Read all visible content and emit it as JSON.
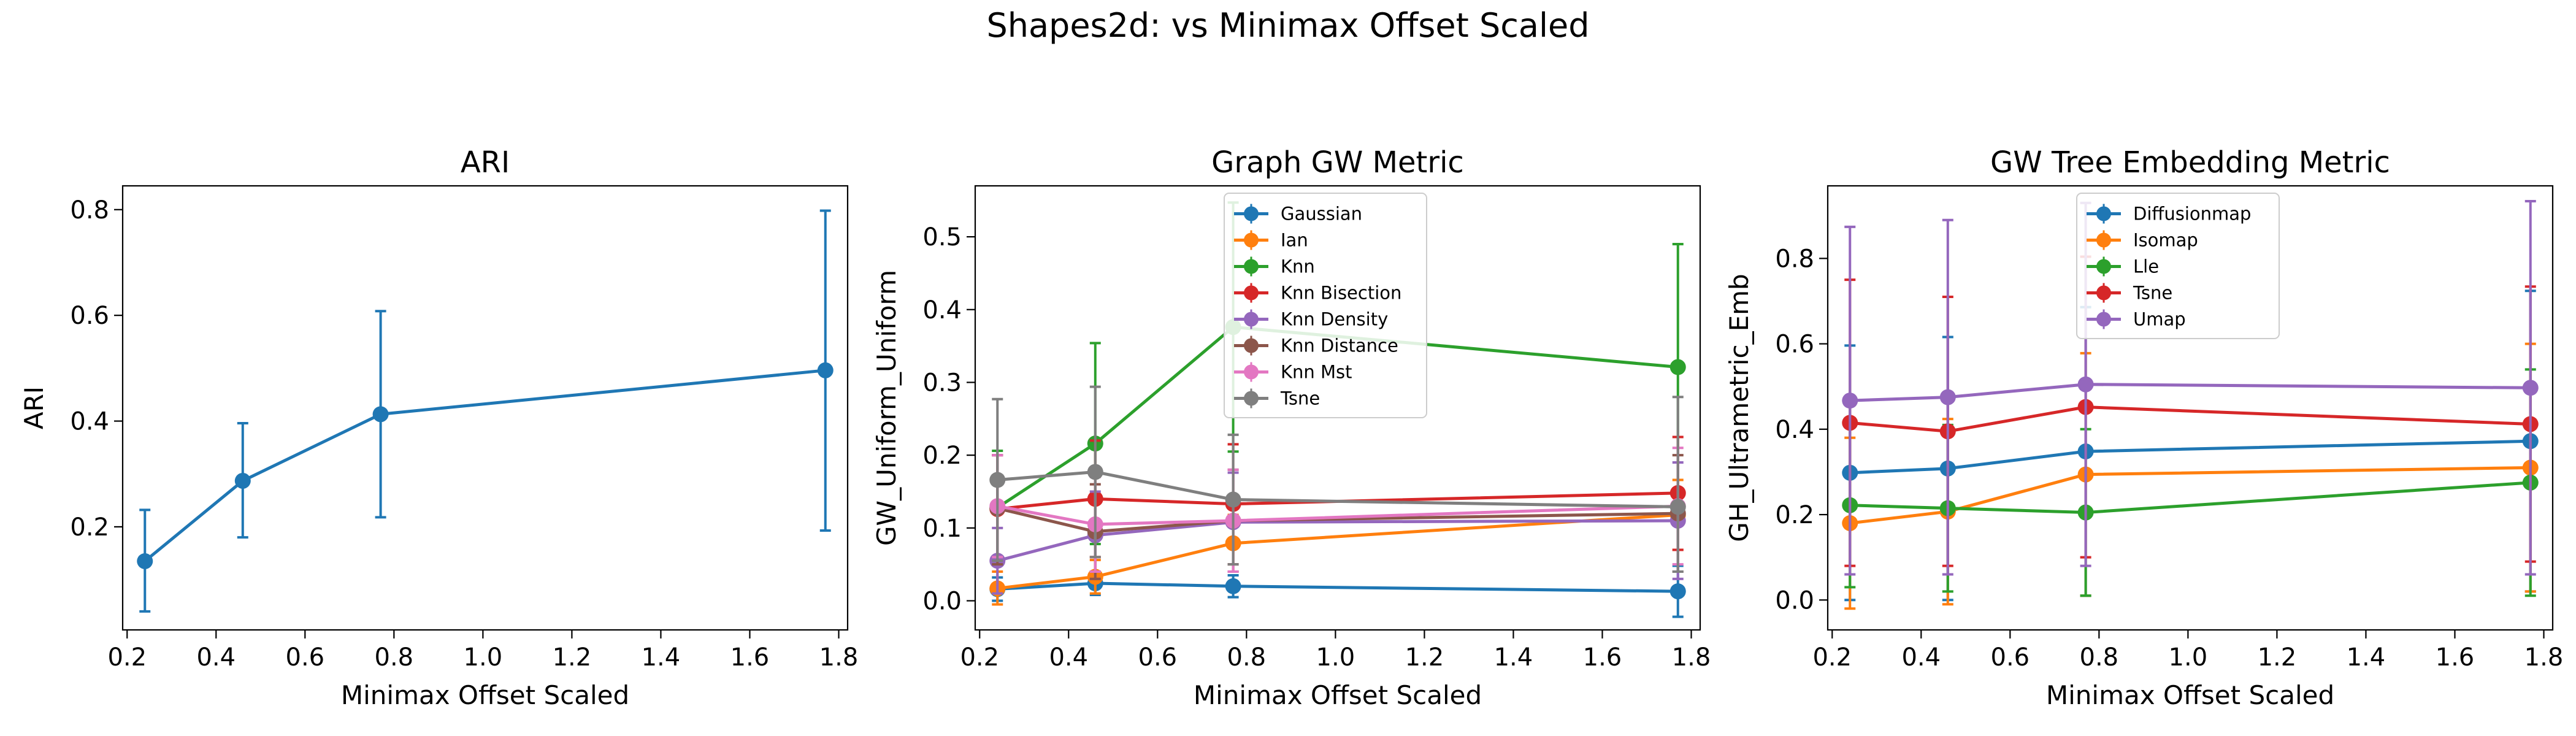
{
  "figure_title": "Shapes2d: vs Minimax Offset Scaled",
  "colors": {
    "blue": "#1f77b4",
    "orange": "#ff7f0e",
    "green": "#2ca02c",
    "red": "#d62728",
    "purple": "#9467bd",
    "brown": "#8c564b",
    "pink": "#e377c2",
    "gray": "#7f7f7f"
  },
  "chart_data": [
    {
      "type": "line",
      "title": "ARI",
      "xlabel": "Minimax Offset Scaled",
      "ylabel": "ARI",
      "xlim": [
        0.19,
        1.82
      ],
      "ylim": [
        0.005,
        0.845
      ],
      "xticks": [
        0.2,
        0.4,
        0.6,
        0.8,
        1.0,
        1.2,
        1.4,
        1.6,
        1.8
      ],
      "xtick_labels": [
        "0.2",
        "0.4",
        "0.6",
        "0.8",
        "1.0",
        "1.2",
        "1.4",
        "1.6",
        "1.8"
      ],
      "yticks": [
        0.2,
        0.4,
        0.6,
        0.8
      ],
      "ytick_labels": [
        "0.2",
        "0.4",
        "0.6",
        "0.8"
      ],
      "legend": null,
      "x": [
        0.24,
        0.46,
        0.77,
        1.77
      ],
      "series": [
        {
          "color": "#1f77b4",
          "values": [
            0.135,
            0.287,
            0.413,
            0.496
          ],
          "err_low": [
            0.04,
            0.18,
            0.218,
            0.193
          ],
          "err_high": [
            0.232,
            0.396,
            0.608,
            0.798
          ]
        }
      ]
    },
    {
      "type": "line",
      "title": "Graph GW Metric",
      "xlabel": "Minimax Offset Scaled",
      "ylabel": "GW_Uniform_Uniform",
      "xlim": [
        0.19,
        1.82
      ],
      "ylim": [
        -0.04,
        0.57
      ],
      "xticks": [
        0.2,
        0.4,
        0.6,
        0.8,
        1.0,
        1.2,
        1.4,
        1.6,
        1.8
      ],
      "xtick_labels": [
        "0.2",
        "0.4",
        "0.6",
        "0.8",
        "1.0",
        "1.2",
        "1.4",
        "1.6",
        "1.8"
      ],
      "yticks": [
        0.0,
        0.1,
        0.2,
        0.3,
        0.4,
        0.5
      ],
      "ytick_labels": [
        "0.0",
        "0.1",
        "0.2",
        "0.3",
        "0.4",
        "0.5"
      ],
      "legend": "upper-center",
      "x": [
        0.24,
        0.46,
        0.77,
        1.77
      ],
      "series": [
        {
          "name": "Gaussian",
          "color": "#1f77b4",
          "values": [
            0.016,
            0.024,
            0.02,
            0.013
          ],
          "err_low": [
            0.0,
            0.008,
            0.005,
            -0.022
          ],
          "err_high": [
            0.032,
            0.04,
            0.035,
            0.048
          ]
        },
        {
          "name": "Ian",
          "color": "#ff7f0e",
          "values": [
            0.017,
            0.033,
            0.079,
            0.118
          ],
          "err_low": [
            -0.005,
            0.01,
            0.04,
            0.07
          ],
          "err_high": [
            0.04,
            0.056,
            0.118,
            0.166
          ]
        },
        {
          "name": "Knn",
          "color": "#2ca02c",
          "values": [
            0.128,
            0.216,
            0.376,
            0.321
          ],
          "err_low": [
            0.05,
            0.078,
            0.205,
            0.152
          ],
          "err_high": [
            0.206,
            0.354,
            0.547,
            0.49
          ]
        },
        {
          "name": "Knn Bisection",
          "color": "#d62728",
          "values": [
            0.126,
            0.14,
            0.133,
            0.148
          ],
          "err_low": [
            0.05,
            0.06,
            0.05,
            0.07
          ],
          "err_high": [
            0.2,
            0.22,
            0.215,
            0.225
          ]
        },
        {
          "name": "Knn Density",
          "color": "#9467bd",
          "values": [
            0.055,
            0.09,
            0.108,
            0.11
          ],
          "err_low": [
            0.01,
            0.03,
            0.04,
            0.03
          ],
          "err_high": [
            0.1,
            0.15,
            0.176,
            0.19
          ]
        },
        {
          "name": "Knn Distance",
          "color": "#8c564b",
          "values": [
            0.127,
            0.095,
            0.11,
            0.12
          ],
          "err_low": [
            0.05,
            0.03,
            0.04,
            0.04
          ],
          "err_high": [
            0.2,
            0.16,
            0.18,
            0.2
          ]
        },
        {
          "name": "Knn Mst",
          "color": "#e377c2",
          "values": [
            0.13,
            0.105,
            0.11,
            0.13
          ],
          "err_low": [
            0.06,
            0.04,
            0.04,
            0.05
          ],
          "err_high": [
            0.2,
            0.17,
            0.18,
            0.21
          ]
        },
        {
          "name": "Tsne",
          "color": "#7f7f7f",
          "values": [
            0.166,
            0.177,
            0.139,
            0.129
          ],
          "err_low": [
            0.055,
            0.06,
            0.05,
            0.04
          ],
          "err_high": [
            0.277,
            0.294,
            0.228,
            0.28
          ]
        }
      ]
    },
    {
      "type": "line",
      "title": "GW Tree Embedding Metric",
      "xlabel": "Minimax Offset Scaled",
      "ylabel": "GH_Ultrametric_Emb",
      "xlim": [
        0.19,
        1.82
      ],
      "ylim": [
        -0.07,
        0.97
      ],
      "xticks": [
        0.2,
        0.4,
        0.6,
        0.8,
        1.0,
        1.2,
        1.4,
        1.6,
        1.8
      ],
      "xtick_labels": [
        "0.2",
        "0.4",
        "0.6",
        "0.8",
        "1.0",
        "1.2",
        "1.4",
        "1.6",
        "1.8"
      ],
      "yticks": [
        0.0,
        0.2,
        0.4,
        0.6,
        0.8
      ],
      "ytick_labels": [
        "0.0",
        "0.2",
        "0.4",
        "0.6",
        "0.8"
      ],
      "legend": "upper-center",
      "x": [
        0.24,
        0.46,
        0.77,
        1.77
      ],
      "series": [
        {
          "name": "Diffusionmap",
          "color": "#1f77b4",
          "values": [
            0.298,
            0.308,
            0.348,
            0.372
          ],
          "err_low": [
            0.0,
            0.0,
            0.01,
            0.02
          ],
          "err_high": [
            0.596,
            0.616,
            0.686,
            0.724
          ]
        },
        {
          "name": "Isomap",
          "color": "#ff7f0e",
          "values": [
            0.18,
            0.207,
            0.294,
            0.31
          ],
          "err_low": [
            -0.02,
            -0.01,
            0.01,
            0.02
          ],
          "err_high": [
            0.38,
            0.424,
            0.578,
            0.6
          ]
        },
        {
          "name": "Lle",
          "color": "#2ca02c",
          "values": [
            0.222,
            0.215,
            0.205,
            0.275
          ],
          "err_low": [
            0.03,
            0.02,
            0.01,
            0.01
          ],
          "err_high": [
            0.414,
            0.41,
            0.4,
            0.54
          ]
        },
        {
          "name": "Tsne",
          "color": "#d62728",
          "values": [
            0.415,
            0.395,
            0.452,
            0.412
          ],
          "err_low": [
            0.08,
            0.08,
            0.1,
            0.09
          ],
          "err_high": [
            0.75,
            0.71,
            0.804,
            0.734
          ]
        },
        {
          "name": "Umap",
          "color": "#9467bd",
          "values": [
            0.467,
            0.475,
            0.505,
            0.497
          ],
          "err_low": [
            0.06,
            0.06,
            0.08,
            0.06
          ],
          "err_high": [
            0.874,
            0.89,
            0.93,
            0.934
          ]
        }
      ]
    }
  ]
}
